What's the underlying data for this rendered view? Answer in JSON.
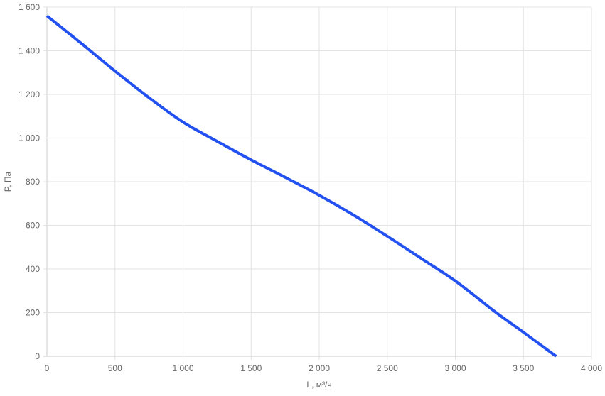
{
  "chart_data": {
    "type": "line",
    "title": "",
    "xlabel": "L, м³/ч",
    "ylabel": "P, Па",
    "xlim": [
      0,
      4000
    ],
    "ylim": [
      0,
      1600
    ],
    "x_ticks": [
      0,
      500,
      1000,
      1500,
      2000,
      2500,
      3000,
      3500,
      4000
    ],
    "x_tick_labels": [
      "0",
      "500",
      "1 000",
      "1 500",
      "2 000",
      "2 500",
      "3 000",
      "3 500",
      "4 000"
    ],
    "y_ticks": [
      0,
      200,
      400,
      600,
      800,
      1000,
      1200,
      1400,
      1600
    ],
    "y_tick_labels": [
      "0",
      "200",
      "400",
      "600",
      "800",
      "1 000",
      "1 200",
      "1 400",
      "1 600"
    ],
    "grid": true,
    "legend": "none",
    "series": [
      {
        "color": "#2351f0",
        "x": [
          0,
          250,
          500,
          750,
          1000,
          1250,
          1500,
          1750,
          2000,
          2250,
          2500,
          2750,
          3000,
          3300,
          3500,
          3740
        ],
        "y": [
          1560,
          1435,
          1307,
          1185,
          1073,
          985,
          900,
          820,
          738,
          648,
          550,
          448,
          345,
          200,
          110,
          0
        ]
      }
    ]
  }
}
